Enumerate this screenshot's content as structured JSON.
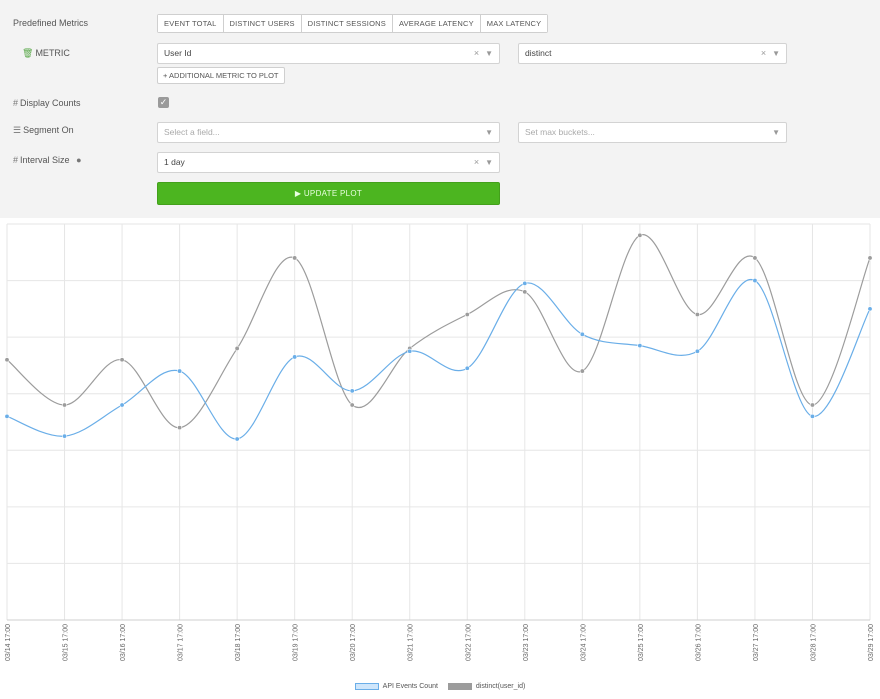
{
  "form": {
    "predefined_label": "Predefined Metrics",
    "predefined_buttons": [
      "EVENT TOTAL",
      "DISTINCT USERS",
      "DISTINCT SESSIONS",
      "AVERAGE LATENCY",
      "MAX LATENCY"
    ],
    "metric_label": "METRIC",
    "metric_field_value": "User Id",
    "metric_agg_value": "distinct",
    "additional_metric_button": "+ ADDITIONAL METRIC TO PLOT",
    "display_counts_label": "Display Counts",
    "display_counts_checked": true,
    "segment_label": "Segment On",
    "segment_placeholder": "Select a field...",
    "buckets_placeholder": "Set max buckets...",
    "interval_label": "Interval Size",
    "interval_value": "1 day",
    "update_button": "▶ UPDATE PLOT"
  },
  "icons": {
    "metric": "trash-icon",
    "display_counts": "hash-icon",
    "segment": "list-icon",
    "interval": "hash-icon",
    "help": "question-circle-icon",
    "clear": "clear-x-icon",
    "dropdown": "caret-down-icon",
    "check": "check-icon"
  },
  "colors": {
    "primary_green": "#4cb520",
    "series_events": "#6aaee8",
    "series_distinct": "#9c9c9c",
    "grid": "#e6e6e6",
    "panel_bg": "#f3f3f3"
  },
  "chart_data": {
    "type": "line",
    "smooth": true,
    "grid": true,
    "legend_placement": "bottom",
    "categories": [
      "03/14 17:00",
      "03/15 17:00",
      "03/16 17:00",
      "03/17 17:00",
      "03/18 17:00",
      "03/19 17:00",
      "03/20 17:00",
      "03/21 17:00",
      "03/22 17:00",
      "03/23 17:00",
      "03/24 17:00",
      "03/25 17:00",
      "03/26 17:00",
      "03/27 17:00",
      "03/28 17:00",
      "03/29 17:00"
    ],
    "ylim": [
      0,
      7
    ],
    "series": [
      {
        "name": "API Events Count",
        "color": "#6aaee8",
        "values": [
          3.6,
          3.25,
          3.8,
          4.4,
          3.2,
          4.65,
          4.05,
          4.75,
          4.45,
          5.95,
          5.05,
          4.85,
          4.75,
          6.0,
          3.6,
          5.5
        ]
      },
      {
        "name": "distinct(user_id)",
        "color": "#9c9c9c",
        "values": [
          4.6,
          3.8,
          4.6,
          3.4,
          4.8,
          6.4,
          3.8,
          4.8,
          5.4,
          5.8,
          4.4,
          6.8,
          5.4,
          6.4,
          3.8,
          6.4
        ]
      }
    ]
  }
}
